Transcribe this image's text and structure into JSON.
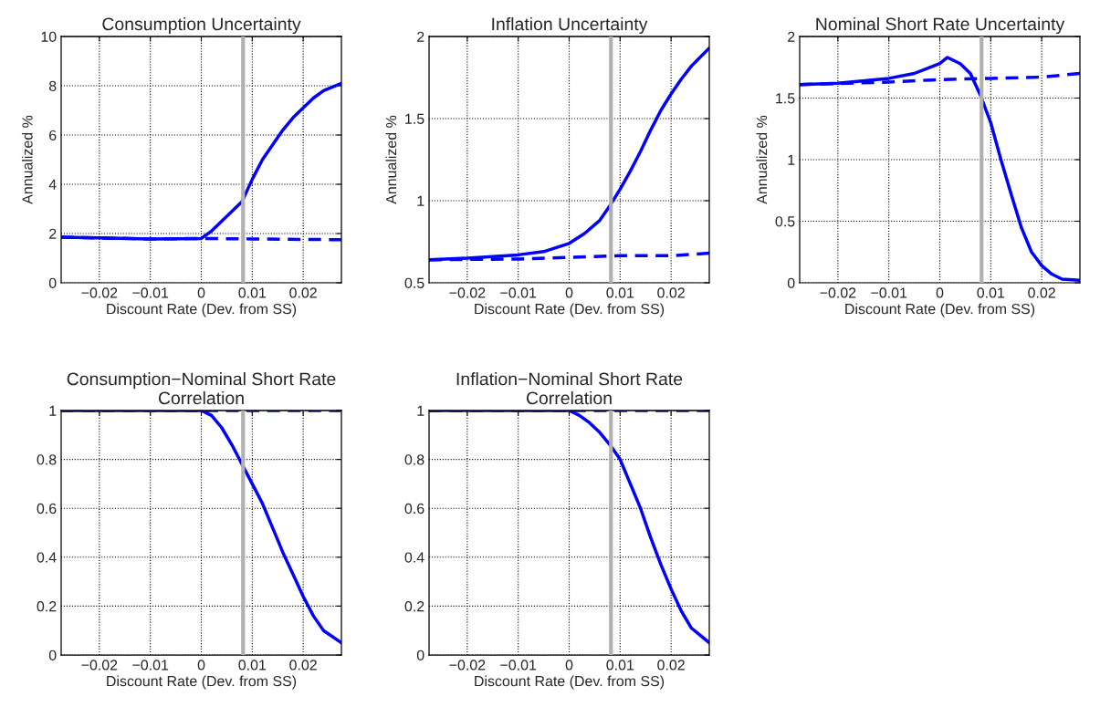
{
  "chart_data": [
    {
      "type": "line",
      "title": "Consumption Uncertainty",
      "xlabel": "Discount Rate (Dev. from SS)",
      "ylabel": "Annualized %",
      "xlim": [
        -0.0275,
        0.0275
      ],
      "xticks": [
        -0.02,
        -0.01,
        0,
        0.01,
        0.02
      ],
      "ylim": [
        0,
        10
      ],
      "yticks": [
        0,
        2,
        4,
        6,
        8,
        10
      ],
      "grid": true,
      "ref_lines": [
        {
          "axis": "x",
          "value": 0.0082,
          "color": "#b0b0b0"
        }
      ],
      "series": [
        {
          "color": "#0000ff",
          "line_style": "solid",
          "x": [
            -0.0275,
            -0.02,
            -0.01,
            0,
            0.002,
            0.004,
            0.006,
            0.008,
            0.01,
            0.012,
            0.014,
            0.016,
            0.018,
            0.02,
            0.022,
            0.024,
            0.0275
          ],
          "values": [
            1.85,
            1.82,
            1.78,
            1.8,
            2.1,
            2.5,
            2.9,
            3.3,
            4.2,
            5.0,
            5.6,
            6.2,
            6.7,
            7.1,
            7.5,
            7.8,
            8.1
          ]
        },
        {
          "color": "#0000ff",
          "line_style": "dashed",
          "x": [
            -0.0275,
            -0.02,
            -0.01,
            0,
            0.01,
            0.02,
            0.0275
          ],
          "values": [
            1.85,
            1.82,
            1.78,
            1.8,
            1.78,
            1.76,
            1.75
          ]
        }
      ]
    },
    {
      "type": "line",
      "title": "Inflation Uncertainty",
      "xlabel": "Discount Rate (Dev. from SS)",
      "ylabel": "Annualized %",
      "xlim": [
        -0.0275,
        0.0275
      ],
      "xticks": [
        -0.02,
        -0.01,
        0,
        0.01,
        0.02
      ],
      "ylim": [
        0.5,
        2
      ],
      "yticks": [
        0.5,
        1,
        1.5,
        2
      ],
      "grid": true,
      "ref_lines": [
        {
          "axis": "x",
          "value": 0.0082,
          "color": "#b0b0b0"
        }
      ],
      "series": [
        {
          "color": "#0000ff",
          "line_style": "solid",
          "x": [
            -0.0275,
            -0.02,
            -0.01,
            -0.005,
            0,
            0.003,
            0.006,
            0.008,
            0.01,
            0.012,
            0.014,
            0.016,
            0.018,
            0.02,
            0.022,
            0.024,
            0.0275
          ],
          "values": [
            0.64,
            0.65,
            0.67,
            0.69,
            0.74,
            0.8,
            0.88,
            0.97,
            1.07,
            1.18,
            1.3,
            1.43,
            1.55,
            1.65,
            1.74,
            1.82,
            1.93
          ]
        },
        {
          "color": "#0000ff",
          "line_style": "dashed",
          "x": [
            -0.0275,
            -0.01,
            0,
            0.01,
            0.02,
            0.0275
          ],
          "values": [
            0.64,
            0.645,
            0.655,
            0.665,
            0.665,
            0.68
          ]
        }
      ]
    },
    {
      "type": "line",
      "title": "Nominal Short Rate Uncertainty",
      "xlabel": "Discount Rate (Dev. from SS)",
      "ylabel": "Annualized %",
      "xlim": [
        -0.0275,
        0.0275
      ],
      "xticks": [
        -0.02,
        -0.01,
        0,
        0.01,
        0.02
      ],
      "ylim": [
        0,
        2
      ],
      "yticks": [
        0,
        0.5,
        1,
        1.5,
        2
      ],
      "grid": true,
      "ref_lines": [
        {
          "axis": "x",
          "value": 0.0082,
          "color": "#b0b0b0"
        }
      ],
      "series": [
        {
          "color": "#0000ff",
          "line_style": "solid",
          "x": [
            -0.0275,
            -0.02,
            -0.01,
            -0.005,
            0,
            0.0015,
            0.004,
            0.006,
            0.008,
            0.01,
            0.012,
            0.014,
            0.016,
            0.018,
            0.02,
            0.022,
            0.024,
            0.0275
          ],
          "values": [
            1.61,
            1.62,
            1.66,
            1.7,
            1.78,
            1.83,
            1.78,
            1.7,
            1.52,
            1.3,
            1.0,
            0.72,
            0.45,
            0.25,
            0.14,
            0.07,
            0.03,
            0.02
          ]
        },
        {
          "color": "#0000ff",
          "line_style": "dashed",
          "x": [
            -0.0275,
            -0.01,
            0,
            0.01,
            0.02,
            0.0275
          ],
          "values": [
            1.61,
            1.63,
            1.65,
            1.66,
            1.67,
            1.7
          ]
        }
      ]
    },
    {
      "type": "line",
      "title": "Consumption−Nominal Short Rate\nCorrelation",
      "xlabel": "Discount Rate (Dev. from SS)",
      "xlim": [
        -0.0275,
        0.0275
      ],
      "xticks": [
        -0.02,
        -0.01,
        0,
        0.01,
        0.02
      ],
      "ylim": [
        0,
        1
      ],
      "yticks": [
        0,
        0.2,
        0.4,
        0.6,
        0.8,
        1
      ],
      "grid": true,
      "ref_lines": [
        {
          "axis": "x",
          "value": 0.0082,
          "color": "#b0b0b0"
        }
      ],
      "series": [
        {
          "color": "#0000ff",
          "line_style": "solid",
          "x": [
            -0.0275,
            -0.01,
            0,
            0.002,
            0.004,
            0.006,
            0.008,
            0.01,
            0.012,
            0.014,
            0.016,
            0.018,
            0.02,
            0.022,
            0.024,
            0.0275
          ],
          "values": [
            1,
            1,
            1,
            0.98,
            0.93,
            0.86,
            0.78,
            0.7,
            0.62,
            0.52,
            0.42,
            0.33,
            0.24,
            0.16,
            0.1,
            0.05
          ]
        },
        {
          "color": "#0000ff",
          "line_style": "dashed",
          "x": [
            -0.0275,
            0.0275
          ],
          "values": [
            1,
            1
          ]
        }
      ]
    },
    {
      "type": "line",
      "title": "Inflation−Nominal Short Rate\nCorrelation",
      "xlabel": "Discount Rate (Dev. from SS)",
      "xlim": [
        -0.0275,
        0.0275
      ],
      "xticks": [
        -0.02,
        -0.01,
        0,
        0.01,
        0.02
      ],
      "ylim": [
        0,
        1
      ],
      "yticks": [
        0,
        0.2,
        0.4,
        0.6,
        0.8,
        1
      ],
      "grid": true,
      "ref_lines": [
        {
          "axis": "x",
          "value": 0.0082,
          "color": "#b0b0b0"
        }
      ],
      "series": [
        {
          "color": "#0000ff",
          "line_style": "solid",
          "x": [
            -0.0275,
            -0.01,
            0,
            0.002,
            0.004,
            0.006,
            0.008,
            0.01,
            0.012,
            0.014,
            0.016,
            0.018,
            0.02,
            0.022,
            0.024,
            0.0275
          ],
          "values": [
            1,
            1,
            1,
            0.98,
            0.95,
            0.91,
            0.86,
            0.8,
            0.7,
            0.6,
            0.48,
            0.37,
            0.27,
            0.18,
            0.11,
            0.05
          ]
        },
        {
          "color": "#0000ff",
          "line_style": "dashed",
          "x": [
            -0.0275,
            0.0275
          ],
          "values": [
            1,
            1
          ]
        }
      ]
    }
  ]
}
